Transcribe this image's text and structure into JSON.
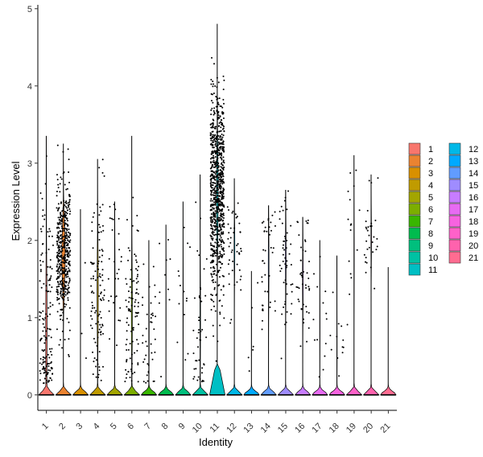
{
  "chart_data": {
    "type": "violin",
    "xlabel": "Identity",
    "ylabel": "Expression Level",
    "ylim": [
      -0.2,
      5.05
    ],
    "yticks": [
      0,
      1,
      2,
      3,
      4,
      5
    ],
    "categories": [
      "1",
      "2",
      "3",
      "4",
      "5",
      "6",
      "7",
      "8",
      "9",
      "10",
      "11",
      "12",
      "13",
      "14",
      "15",
      "16",
      "17",
      "18",
      "19",
      "20",
      "21"
    ],
    "groups": [
      {
        "id": "1",
        "color": "#F8766D",
        "max": 3.35,
        "zero_fraction": 0.55,
        "mass_center": 0.8,
        "mass_sd": 0.9,
        "points": 150
      },
      {
        "id": "2",
        "color": "#EA8331",
        "max": 3.25,
        "zero_fraction": 0.35,
        "mass_center": 1.8,
        "mass_sd": 0.45,
        "points": 450
      },
      {
        "id": "3",
        "color": "#D89000",
        "max": 2.4,
        "zero_fraction": 0.97,
        "mass_center": 1.5,
        "mass_sd": 0.6,
        "points": 3
      },
      {
        "id": "4",
        "color": "#C09B00",
        "max": 3.05,
        "zero_fraction": 0.6,
        "mass_center": 1.3,
        "mass_sd": 0.7,
        "points": 110
      },
      {
        "id": "5",
        "color": "#A3A500",
        "max": 2.5,
        "zero_fraction": 0.75,
        "mass_center": 1.4,
        "mass_sd": 0.6,
        "points": 30
      },
      {
        "id": "6",
        "color": "#7CAE00",
        "max": 3.35,
        "zero_fraction": 0.65,
        "mass_center": 1.1,
        "mass_sd": 0.7,
        "points": 100
      },
      {
        "id": "7",
        "color": "#39B600",
        "max": 2.0,
        "zero_fraction": 0.8,
        "mass_center": 0.8,
        "mass_sd": 0.5,
        "points": 40
      },
      {
        "id": "8",
        "color": "#00BB4E",
        "max": 2.2,
        "zero_fraction": 0.92,
        "mass_center": 1.2,
        "mass_sd": 0.6,
        "points": 10
      },
      {
        "id": "9",
        "color": "#00BF7D",
        "max": 2.5,
        "zero_fraction": 0.9,
        "mass_center": 1.2,
        "mass_sd": 0.6,
        "points": 14
      },
      {
        "id": "10",
        "color": "#00C1A3",
        "max": 2.85,
        "zero_fraction": 0.75,
        "mass_center": 1.0,
        "mass_sd": 0.7,
        "points": 45
      },
      {
        "id": "11",
        "color": "#00BFC4",
        "max": 4.8,
        "zero_fraction": 0.2,
        "mass_center": 2.6,
        "mass_sd": 0.65,
        "points": 800
      },
      {
        "id": "12",
        "color": "#00B8E7",
        "max": 2.8,
        "zero_fraction": 0.7,
        "mass_center": 1.9,
        "mass_sd": 0.4,
        "points": 45
      },
      {
        "id": "13",
        "color": "#00A9FF",
        "max": 1.6,
        "zero_fraction": 0.95,
        "mass_center": 0.8,
        "mass_sd": 0.4,
        "points": 6
      },
      {
        "id": "14",
        "color": "#619CFF",
        "max": 2.45,
        "zero_fraction": 0.72,
        "mass_center": 1.7,
        "mass_sd": 0.5,
        "points": 40
      },
      {
        "id": "15",
        "color": "#9F8CFF",
        "max": 2.65,
        "zero_fraction": 0.7,
        "mass_center": 1.8,
        "mass_sd": 0.5,
        "points": 50
      },
      {
        "id": "16",
        "color": "#C77CFF",
        "max": 2.3,
        "zero_fraction": 0.72,
        "mass_center": 1.5,
        "mass_sd": 0.5,
        "points": 45
      },
      {
        "id": "17",
        "color": "#E76BF3",
        "max": 2.0,
        "zero_fraction": 0.9,
        "mass_center": 0.9,
        "mass_sd": 0.4,
        "points": 14
      },
      {
        "id": "18",
        "color": "#F763E0",
        "max": 1.8,
        "zero_fraction": 0.9,
        "mass_center": 0.6,
        "mass_sd": 0.3,
        "points": 12
      },
      {
        "id": "19",
        "color": "#FF61C9",
        "max": 3.1,
        "zero_fraction": 0.85,
        "mass_center": 1.8,
        "mass_sd": 0.6,
        "points": 16
      },
      {
        "id": "20",
        "color": "#FF62AD",
        "max": 2.85,
        "zero_fraction": 0.75,
        "mass_center": 2.0,
        "mass_sd": 0.35,
        "points": 30
      },
      {
        "id": "21",
        "color": "#FF6C91",
        "max": 1.65,
        "zero_fraction": 1.0,
        "mass_center": 0.0,
        "mass_sd": 0.0,
        "points": 0
      }
    ],
    "legend": {
      "position": "right",
      "columns": 2
    }
  }
}
